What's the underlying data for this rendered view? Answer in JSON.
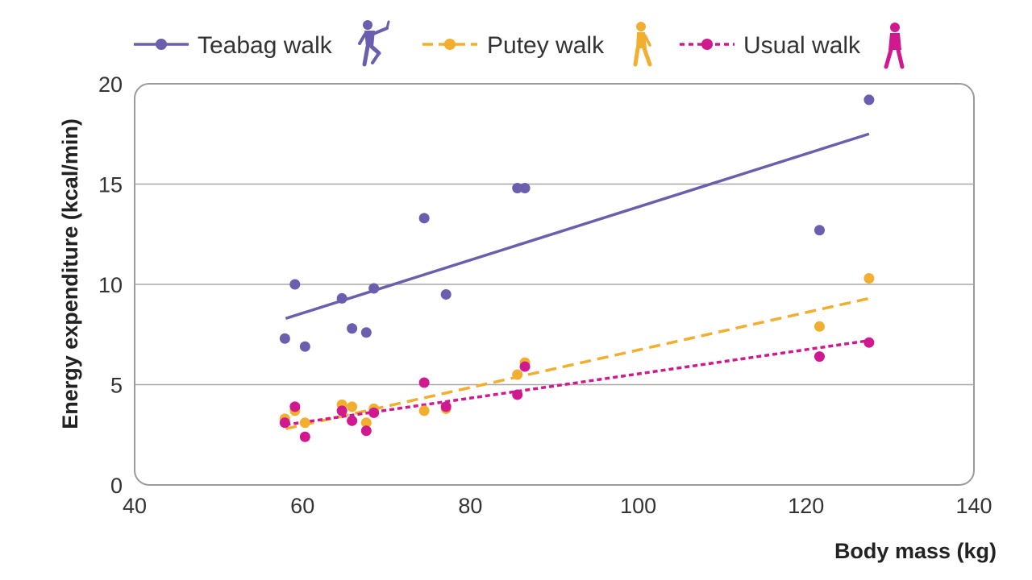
{
  "chart_data": {
    "type": "scatter",
    "xlabel": "Body mass (kg)",
    "ylabel": "Energy expenditure (kcal/min)",
    "xlim": [
      40,
      140
    ],
    "ylim": [
      0,
      20
    ],
    "xticks": [
      "40",
      "60",
      "80",
      "100",
      "120",
      "140"
    ],
    "yticks": [
      "0",
      "5",
      "10",
      "15",
      "20"
    ],
    "grid": "horizontal",
    "legend_position": "top",
    "series": [
      {
        "name": "Teabag walk",
        "color": "#6b5eae",
        "line_style": "solid",
        "icon": "silly-walk-figure-icon",
        "points": [
          [
            57.9,
            7.3
          ],
          [
            59.1,
            10.0
          ],
          [
            60.3,
            6.9
          ],
          [
            64.7,
            9.3
          ],
          [
            65.9,
            7.8
          ],
          [
            67.6,
            7.6
          ],
          [
            68.5,
            9.8
          ],
          [
            74.5,
            13.3
          ],
          [
            77.1,
            9.5
          ],
          [
            85.6,
            14.8
          ],
          [
            86.5,
            14.8
          ],
          [
            121.6,
            12.7
          ],
          [
            127.5,
            19.2
          ]
        ],
        "trend": [
          [
            58,
            8.3
          ],
          [
            127.5,
            17.5
          ]
        ]
      },
      {
        "name": "Putey walk",
        "color": "#f2ae2e",
        "line_style": "dashed",
        "icon": "walking-figure-icon",
        "points": [
          [
            57.9,
            3.3
          ],
          [
            59.1,
            3.7
          ],
          [
            60.3,
            3.1
          ],
          [
            64.7,
            4.0
          ],
          [
            65.9,
            3.9
          ],
          [
            67.6,
            3.1
          ],
          [
            68.5,
            3.8
          ],
          [
            74.5,
            3.7
          ],
          [
            77.1,
            3.8
          ],
          [
            85.6,
            5.5
          ],
          [
            86.5,
            6.1
          ],
          [
            121.6,
            7.9
          ],
          [
            127.5,
            10.3
          ]
        ],
        "trend": [
          [
            58,
            2.8
          ],
          [
            127.5,
            9.3
          ]
        ]
      },
      {
        "name": "Usual walk",
        "color": "#d0198f",
        "line_style": "dotted",
        "icon": "walking-figure-icon",
        "points": [
          [
            57.9,
            3.1
          ],
          [
            59.1,
            3.9
          ],
          [
            60.3,
            2.4
          ],
          [
            64.7,
            3.7
          ],
          [
            65.9,
            3.2
          ],
          [
            67.6,
            2.7
          ],
          [
            68.5,
            3.6
          ],
          [
            74.5,
            5.1
          ],
          [
            77.1,
            3.9
          ],
          [
            85.6,
            4.5
          ],
          [
            86.5,
            5.9
          ],
          [
            121.6,
            6.4
          ],
          [
            127.5,
            7.1
          ]
        ],
        "trend": [
          [
            58,
            3.0
          ],
          [
            127.5,
            7.2
          ]
        ]
      }
    ]
  }
}
